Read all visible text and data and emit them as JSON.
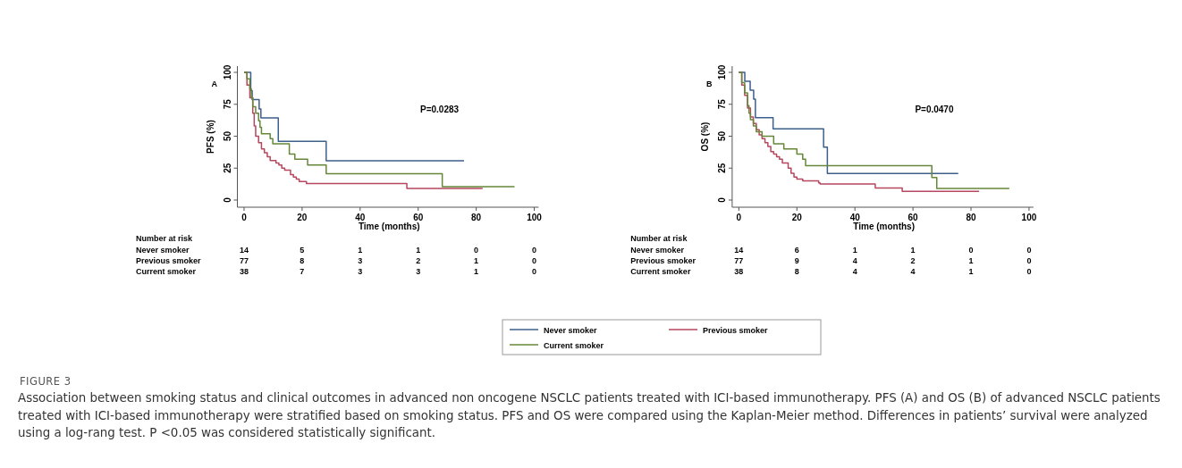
{
  "chart_data": [
    {
      "type": "step",
      "title": "A",
      "xlabel": "Time (months)",
      "ylabel": "PFS (%)",
      "xlim": [
        -2.3,
        101.5
      ],
      "ylim": [
        -5.6,
        104.9
      ],
      "xticks": [
        0,
        20,
        40,
        60,
        80,
        100
      ],
      "yticks": [
        0,
        25,
        50,
        75,
        100
      ],
      "series": [
        {
          "color": "#3d5f8c",
          "x": [
            0,
            2.3,
            2.8,
            5.2,
            5.8,
            11.8,
            28.3,
            75.8
          ],
          "values": [
            100,
            85.7,
            78.6,
            71.4,
            64.3,
            46,
            30.7,
            30.7
          ]
        },
        {
          "color": "#b5475f",
          "x": [
            0,
            1,
            2,
            3,
            3.5,
            4,
            5,
            6,
            7,
            8,
            9,
            11,
            12,
            13,
            14,
            16,
            17,
            18,
            19,
            21.5,
            56.1,
            82.2
          ],
          "values": [
            100,
            90,
            80,
            68,
            58,
            50,
            45,
            40,
            37,
            34,
            31,
            29,
            27.5,
            25,
            23.5,
            20,
            18,
            16.5,
            14.5,
            13,
            9,
            9
          ]
        },
        {
          "color": "#66873a",
          "x": [
            0,
            1,
            2,
            2.5,
            3,
            4,
            5,
            5.5,
            6,
            9,
            9.9,
            15.6,
            17.5,
            21.9,
            28.3,
            68.3,
            93.2
          ],
          "values": [
            100,
            95,
            87,
            80,
            73,
            68,
            62,
            57,
            52,
            48,
            44,
            36,
            32,
            27.5,
            20.7,
            10.4,
            10.4
          ]
        }
      ],
      "annotations": [
        "P=0.0283",
        "Number at risk",
        "Never smoker",
        "Previous smoker",
        "Current smoker",
        "14",
        "5",
        "1",
        "1",
        "0",
        "0",
        "77",
        "8",
        "3",
        "2",
        "1",
        "0",
        "38",
        "7",
        "3",
        "3",
        "1",
        "0",
        "FIGURE 3",
        "Association between smoking status and clinical outcomes in advanced non oncogene NSCLC patients treated with ICI-based immunotherapy. PFS (A) and OS (B) of advanced NSCLC patients treated with ICI-based immunotherapy were stratified based on smoking status. PFS and OS were compared using the Kaplan-Meier method. Differences in patients’ survival were analyzed using a log-rang test. P <0.05 was considered statistically significant."
      ]
    },
    {
      "type": "step",
      "title": "B",
      "xlabel": "Time (months)",
      "ylabel": "OS (%)",
      "xlim": [
        -2.3,
        101.5
      ],
      "ylim": [
        -5.6,
        104.9
      ],
      "xticks": [
        0,
        20,
        40,
        60,
        80,
        100
      ],
      "yticks": [
        0,
        25,
        50,
        75,
        100
      ],
      "legend": "bottom",
      "series": [
        {
          "name": "Never smoker",
          "color": "#3d5f8c",
          "x": [
            0,
            2.05,
            3.9,
            5.1,
            5.7,
            11.8,
            29.2,
            30.5,
            75.6
          ],
          "values": [
            100,
            93,
            86,
            79,
            64.5,
            55.7,
            41.5,
            20.8,
            20.8
          ]
        },
        {
          "name": "Previous smoker",
          "color": "#b5475f",
          "x": [
            0,
            1,
            2,
            3,
            4,
            5,
            6,
            7,
            8,
            9,
            10,
            11,
            12,
            13,
            14,
            15,
            17,
            18,
            19,
            20,
            22,
            27.5,
            28,
            47,
            56.3,
            82.8
          ],
          "values": [
            100,
            90,
            82,
            72,
            65,
            60,
            55,
            51,
            48,
            45,
            42,
            38,
            36,
            34,
            32,
            29,
            25,
            21,
            18,
            16.5,
            15,
            13.5,
            12.5,
            9.5,
            6.8,
            6.8
          ]
        },
        {
          "name": "Current smoker",
          "color": "#66873a",
          "x": [
            0,
            1,
            2,
            3,
            3.5,
            4,
            5,
            6,
            8,
            12,
            15.5,
            20,
            22,
            23,
            66.5,
            68.2,
            93.2
          ],
          "values": [
            100,
            92,
            84,
            74,
            68,
            63,
            58,
            53.5,
            50,
            44,
            40,
            36,
            32,
            27,
            17.6,
            9,
            9
          ]
        }
      ],
      "annotations": [
        "P=0.0470",
        "Number at risk",
        "Never smoker",
        "Previous smoker",
        "Current smoker",
        "14",
        "6",
        "1",
        "1",
        "0",
        "0",
        "77",
        "9",
        "4",
        "2",
        "1",
        "0",
        "38",
        "8",
        "4",
        "4",
        "1",
        "0"
      ]
    }
  ]
}
